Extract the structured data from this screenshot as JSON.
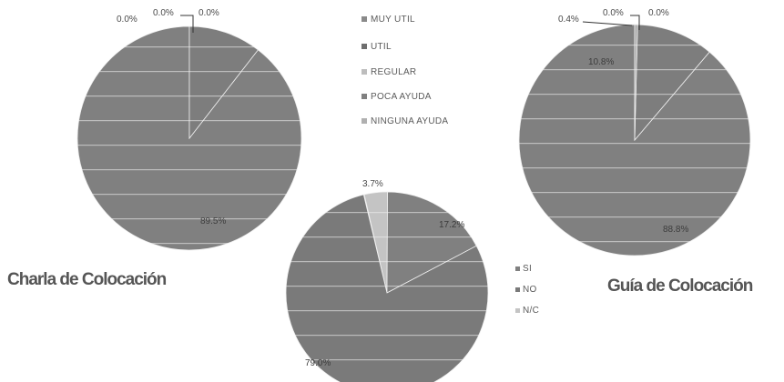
{
  "colors": {
    "pie_fill": "#808080",
    "slice_light": "#a9a9a9",
    "slice_lighter": "#c4c4c4",
    "stripe": "#9a9a9a",
    "stroke": "#f0f0f0",
    "legend_muy_util": "#8a8a8a",
    "legend_util": "#6e6e6e",
    "legend_regular": "#bdbdbd",
    "legend_poca_ayuda": "#808080",
    "legend_ninguna_ayuda": "#b0b0b0"
  },
  "chart_data": [
    {
      "type": "pie",
      "title": "Charla de Colocación",
      "legend": "shared",
      "slices": [
        {
          "label": "MUY UTIL",
          "value": 89.5,
          "display": "89.5%",
          "color": "#808080"
        },
        {
          "label": "UTIL",
          "value": 10.5,
          "display": "",
          "color": "#7a7a7a"
        },
        {
          "label": "REGULAR",
          "value": 0.0,
          "display": "0.0%",
          "color": "#bdbdbd"
        },
        {
          "label": "POCA AYUDA",
          "value": 0.0,
          "display": "0.0%",
          "color": "#808080"
        },
        {
          "label": "NINGUNA AYUDA",
          "value": 0.0,
          "display": "0.0%",
          "color": "#b0b0b0"
        }
      ]
    },
    {
      "type": "pie",
      "title": "Guía de Colocación",
      "legend": "shared",
      "slices": [
        {
          "label": "MUY UTIL",
          "value": 88.8,
          "display": "88.8%",
          "color": "#808080"
        },
        {
          "label": "UTIL",
          "value": 10.8,
          "display": "10.8%",
          "color": "#7a7a7a"
        },
        {
          "label": "REGULAR",
          "value": 0.4,
          "display": "0.4%",
          "color": "#bdbdbd"
        },
        {
          "label": "POCA AYUDA",
          "value": 0.0,
          "display": "0.0%",
          "color": "#808080"
        },
        {
          "label": "NINGUNA AYUDA",
          "value": 0.0,
          "display": "0.0%",
          "color": "#b0b0b0"
        }
      ]
    },
    {
      "type": "pie",
      "title": "",
      "legend": "right",
      "legend_items": [
        "SI",
        "NO",
        "N/C"
      ],
      "slices": [
        {
          "label": "SI",
          "value": 17.2,
          "display": "17.2%",
          "color": "#808080"
        },
        {
          "label": "NO",
          "value": 79.0,
          "display": "79.0%",
          "color": "#7a7a7a"
        },
        {
          "label": "N/C",
          "value": 3.7,
          "display": "3.7%",
          "color": "#c4c4c4"
        }
      ]
    }
  ],
  "legend_shared": {
    "items": [
      "MUY UTIL",
      "UTIL",
      "REGULAR",
      "POCA AYUDA",
      "NINGUNA AYUDA"
    ]
  }
}
